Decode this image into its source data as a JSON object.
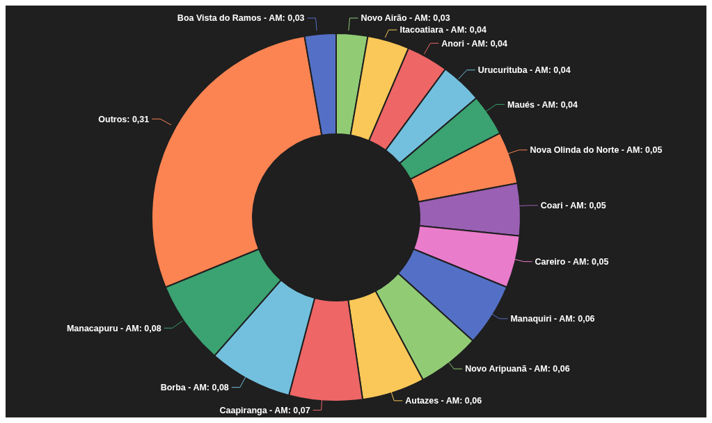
{
  "chart_data": {
    "type": "donut",
    "categories": [
      "Novo Airão - AM",
      "Itacoatiara - AM",
      "Anori - AM",
      "Urucurituba - AM",
      "Maués - AM",
      "Nova Olinda do Norte - AM",
      "Coari - AM",
      "Careiro - AM",
      "Manaquiri - AM",
      "Novo Aripuanã - AM",
      "Autazes - AM",
      "Caapiranga - AM",
      "Borba - AM",
      "Manacapuru - AM",
      "Outros",
      "Boa Vista do Ramos - AM"
    ],
    "values": [
      0.03,
      0.04,
      0.04,
      0.04,
      0.04,
      0.05,
      0.05,
      0.05,
      0.06,
      0.06,
      0.06,
      0.07,
      0.08,
      0.08,
      0.31,
      0.03
    ],
    "value_labels": [
      "0,03",
      "0,04",
      "0,04",
      "0,04",
      "0,04",
      "0,05",
      "0,05",
      "0,05",
      "0,06",
      "0,06",
      "0,06",
      "0,07",
      "0,08",
      "0,08",
      "0,31",
      "0,03"
    ],
    "colors": [
      "#91cc75",
      "#fac858",
      "#ee6666",
      "#73c0de",
      "#3ba272",
      "#fc8452",
      "#9a60b4",
      "#ea7ccc",
      "#5470c6",
      "#91cc75",
      "#fac858",
      "#ee6666",
      "#73c0de",
      "#3ba272",
      "#fc8452",
      "#5470c6"
    ]
  }
}
